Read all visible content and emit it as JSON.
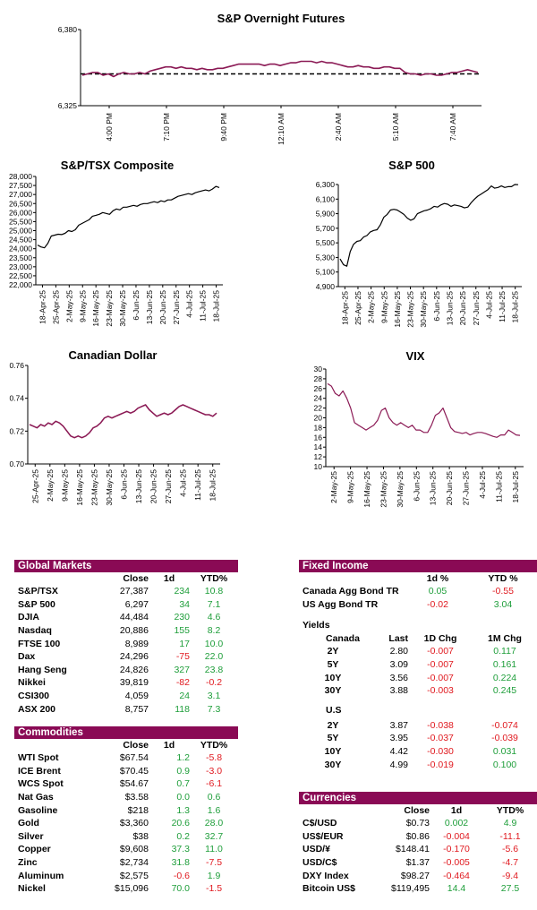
{
  "chart_data": [
    {
      "type": "line",
      "title": "S&P Overnight Futures",
      "ylim": [
        6325,
        6380
      ],
      "y_ticks": [
        "6,380",
        "6,325"
      ],
      "x_ticks": [
        "4:00 PM",
        "7:10 PM",
        "9:40 PM",
        "12:10 AM",
        "2:40 AM",
        "5:10 AM",
        "7:40 AM"
      ],
      "reference_level": 6348,
      "series": [
        {
          "color": "#8b1a55",
          "values": [
            6347,
            6348,
            6349,
            6349,
            6347,
            6348,
            6346,
            6348,
            6349,
            6348,
            6348,
            6349,
            6348,
            6350,
            6351,
            6352,
            6353,
            6353,
            6352,
            6353,
            6352,
            6352,
            6351,
            6352,
            6351,
            6351,
            6352,
            6352,
            6353,
            6354,
            6355,
            6355,
            6355,
            6355,
            6355,
            6354,
            6355,
            6355,
            6354,
            6355,
            6356,
            6356,
            6357,
            6357,
            6357,
            6356,
            6357,
            6356,
            6356,
            6355,
            6354,
            6353,
            6353,
            6354,
            6353,
            6353,
            6352,
            6352,
            6353,
            6353,
            6352,
            6352,
            6349,
            6348,
            6348,
            6347,
            6348,
            6348,
            6347,
            6347,
            6348,
            6349,
            6349,
            6350,
            6351,
            6350,
            6349
          ]
        }
      ]
    },
    {
      "type": "line",
      "title": "S&P/TSX Composite",
      "ylim": [
        22000,
        28000
      ],
      "y_ticks": [
        "28,000",
        "27,500",
        "27,000",
        "26,500",
        "26,000",
        "25,500",
        "25,000",
        "24,500",
        "24,000",
        "23,500",
        "23,000",
        "22,500",
        "22,000"
      ],
      "x_ticks": [
        "18-Apr-25",
        "25-Apr-25",
        "2-May-25",
        "9-May-25",
        "16-May-25",
        "23-May-25",
        "30-May-25",
        "6-Jun-25",
        "13-Jun-25",
        "20-Jun-25",
        "27-Jun-25",
        "4-Jul-25",
        "11-Jul-25",
        "18-Jul-25"
      ],
      "series": [
        {
          "color": "#000000",
          "values": [
            24200,
            24100,
            24050,
            24300,
            24700,
            24750,
            24800,
            24780,
            24850,
            25000,
            24950,
            25050,
            25300,
            25400,
            25500,
            25600,
            25800,
            25850,
            25900,
            26000,
            25950,
            25900,
            26100,
            26200,
            26150,
            26300,
            26300,
            26350,
            26400,
            26350,
            26450,
            26500,
            26500,
            26550,
            26600,
            26550,
            26650,
            26600,
            26700,
            26700,
            26800,
            26900,
            26950,
            27000,
            27050,
            27000,
            27100,
            27150,
            27200,
            27250,
            27200,
            27300,
            27450,
            27387
          ]
        }
      ]
    },
    {
      "type": "line",
      "title": "S&P 500",
      "ylim": [
        4900,
        6300
      ],
      "y_ticks": [
        "6,300",
        "6,100",
        "5,900",
        "5,700",
        "5,500",
        "5,300",
        "5,100",
        "4,900"
      ],
      "x_ticks": [
        "18-Apr-25",
        "25-Apr-25",
        "2-May-25",
        "9-May-25",
        "16-May-25",
        "23-May-25",
        "30-May-25",
        "6-Jun-25",
        "13-Jun-25",
        "20-Jun-25",
        "27-Jun-25",
        "4-Jul-25",
        "11-Jul-25",
        "18-Jul-25"
      ],
      "series": [
        {
          "color": "#000000",
          "values": [
            5280,
            5200,
            5180,
            5380,
            5480,
            5520,
            5530,
            5580,
            5600,
            5650,
            5670,
            5680,
            5750,
            5850,
            5890,
            5950,
            5960,
            5950,
            5920,
            5890,
            5840,
            5810,
            5830,
            5900,
            5920,
            5940,
            5950,
            5970,
            6000,
            5990,
            6020,
            6040,
            6030,
            6000,
            6020,
            6010,
            6000,
            5980,
            5990,
            6050,
            6100,
            6140,
            6170,
            6200,
            6230,
            6280,
            6250,
            6260,
            6280,
            6260,
            6270,
            6270,
            6300,
            6297
          ]
        }
      ]
    },
    {
      "type": "line",
      "title": "Canadian Dollar",
      "ylim": [
        0.7,
        0.76
      ],
      "y_ticks": [
        "0.76",
        "0.74",
        "0.72",
        "0.70"
      ],
      "x_ticks": [
        "25-Apr-25",
        "2-May-25",
        "9-May-25",
        "16-May-25",
        "23-May-25",
        "30-May-25",
        "6-Jun-25",
        "13-Jun-25",
        "20-Jun-25",
        "27-Jun-25",
        "4-Jul-25",
        "11-Jul-25",
        "18-Jul-25"
      ],
      "series": [
        {
          "color": "#8b1a55",
          "values": [
            0.724,
            0.723,
            0.722,
            0.724,
            0.723,
            0.725,
            0.724,
            0.726,
            0.725,
            0.723,
            0.72,
            0.717,
            0.716,
            0.717,
            0.716,
            0.717,
            0.719,
            0.722,
            0.723,
            0.725,
            0.728,
            0.729,
            0.728,
            0.729,
            0.73,
            0.731,
            0.732,
            0.731,
            0.732,
            0.734,
            0.735,
            0.736,
            0.733,
            0.731,
            0.729,
            0.73,
            0.731,
            0.73,
            0.731,
            0.733,
            0.735,
            0.736,
            0.735,
            0.734,
            0.733,
            0.732,
            0.731,
            0.73,
            0.73,
            0.729,
            0.731
          ]
        }
      ]
    },
    {
      "type": "line",
      "title": "VIX",
      "ylim": [
        10,
        30
      ],
      "y_ticks": [
        "30",
        "28",
        "26",
        "24",
        "22",
        "20",
        "18",
        "16",
        "14",
        "12",
        "10"
      ],
      "x_ticks": [
        "2-May-25",
        "9-May-25",
        "16-May-25",
        "23-May-25",
        "30-May-25",
        "6-Jun-25",
        "13-Jun-25",
        "20-Jun-25",
        "27-Jun-25",
        "4-Jul-25",
        "11-Jul-25",
        "18-Jul-25"
      ],
      "series": [
        {
          "color": "#8b1a55",
          "values": [
            27,
            26.5,
            25,
            24.5,
            25.5,
            24,
            22,
            19,
            18.5,
            18,
            17.5,
            18,
            18.5,
            19.5,
            21.5,
            22,
            20,
            19,
            18.5,
            19,
            18.5,
            18,
            18.5,
            17.5,
            17.5,
            17,
            17,
            18.5,
            20.5,
            21,
            22,
            20,
            18,
            17.2,
            17,
            16.8,
            17,
            16.5,
            16.8,
            17,
            17,
            16.8,
            16.5,
            16.2,
            16,
            16.5,
            16.5,
            17.5,
            17,
            16.5,
            16.4
          ]
        }
      ]
    }
  ],
  "colors": {
    "header_bg": "#8a0a55",
    "positive": "#1e9e3a",
    "negative": "#e0191f"
  },
  "global_markets": {
    "title": "Global Markets",
    "columns": [
      "Close",
      "1d",
      "YTD%"
    ],
    "rows": [
      {
        "name": "S&P/TSX",
        "close": "27,387",
        "d1": "234",
        "ytd": "10.8",
        "d1_sign": "pos",
        "ytd_sign": "pos"
      },
      {
        "name": "S&P 500",
        "close": "6,297",
        "d1": "34",
        "ytd": "7.1",
        "d1_sign": "pos",
        "ytd_sign": "pos"
      },
      {
        "name": "DJIA",
        "close": "44,484",
        "d1": "230",
        "ytd": "4.6",
        "d1_sign": "pos",
        "ytd_sign": "pos"
      },
      {
        "name": "Nasdaq",
        "close": "20,886",
        "d1": "155",
        "ytd": "8.2",
        "d1_sign": "pos",
        "ytd_sign": "pos"
      },
      {
        "name": "FTSE 100",
        "close": "8,989",
        "d1": "17",
        "ytd": "10.0",
        "d1_sign": "pos",
        "ytd_sign": "pos"
      },
      {
        "name": "Dax",
        "close": "24,296",
        "d1": "-75",
        "ytd": "22.0",
        "d1_sign": "neg",
        "ytd_sign": "pos"
      },
      {
        "name": "Hang Seng",
        "close": "24,826",
        "d1": "327",
        "ytd": "23.8",
        "d1_sign": "pos",
        "ytd_sign": "pos"
      },
      {
        "name": "Nikkei",
        "close": "39,819",
        "d1": "-82",
        "ytd": "-0.2",
        "d1_sign": "neg",
        "ytd_sign": "neg"
      },
      {
        "name": "CSI300",
        "close": "4,059",
        "d1": "24",
        "ytd": "3.1",
        "d1_sign": "pos",
        "ytd_sign": "pos"
      },
      {
        "name": "ASX 200",
        "close": "8,757",
        "d1": "118",
        "ytd": "7.3",
        "d1_sign": "pos",
        "ytd_sign": "pos"
      }
    ]
  },
  "commodities": {
    "title": "Commodities",
    "columns": [
      "Close",
      "1d",
      "YTD%"
    ],
    "rows": [
      {
        "name": "WTI Spot",
        "close": "$67.54",
        "d1": "1.2",
        "ytd": "-5.8",
        "d1_sign": "pos",
        "ytd_sign": "neg"
      },
      {
        "name": "ICE Brent",
        "close": "$70.45",
        "d1": "0.9",
        "ytd": "-3.0",
        "d1_sign": "pos",
        "ytd_sign": "neg"
      },
      {
        "name": "WCS Spot",
        "close": "$54.67",
        "d1": "0.7",
        "ytd": "-6.1",
        "d1_sign": "pos",
        "ytd_sign": "neg"
      },
      {
        "name": "Nat Gas",
        "close": "$3.58",
        "d1": "0.0",
        "ytd": "0.6",
        "d1_sign": "pos",
        "ytd_sign": "pos"
      },
      {
        "name": "Gasoline",
        "close": "$218",
        "d1": "1.3",
        "ytd": "1.6",
        "d1_sign": "pos",
        "ytd_sign": "pos"
      },
      {
        "name": "Gold",
        "close": "$3,360",
        "d1": "20.6",
        "ytd": "28.0",
        "d1_sign": "pos",
        "ytd_sign": "pos"
      },
      {
        "name": "Silver",
        "close": "$38",
        "d1": "0.2",
        "ytd": "32.7",
        "d1_sign": "pos",
        "ytd_sign": "pos"
      },
      {
        "name": "Copper",
        "close": "$9,608",
        "d1": "37.3",
        "ytd": "11.0",
        "d1_sign": "pos",
        "ytd_sign": "pos"
      },
      {
        "name": "Zinc",
        "close": "$2,734",
        "d1": "31.8",
        "ytd": "-7.5",
        "d1_sign": "pos",
        "ytd_sign": "neg"
      },
      {
        "name": "Aluminum",
        "close": "$2,575",
        "d1": "-0.6",
        "ytd": "1.9",
        "d1_sign": "neg",
        "ytd_sign": "pos"
      },
      {
        "name": "Nickel",
        "close": "$15,096",
        "d1": "70.0",
        "ytd": "-1.5",
        "d1_sign": "pos",
        "ytd_sign": "neg"
      }
    ]
  },
  "fixed_income": {
    "title": "Fixed Income",
    "columns": [
      "1d %",
      "YTD %"
    ],
    "rows": [
      {
        "name": "Canada Agg Bond TR",
        "d1": "0.05",
        "ytd": "-0.55",
        "d1_sign": "pos",
        "ytd_sign": "neg"
      },
      {
        "name": "US Agg Bond TR",
        "d1": "-0.02",
        "ytd": "3.04",
        "d1_sign": "neg",
        "ytd_sign": "pos"
      }
    ],
    "yields_label": "Yields",
    "canada_label": "Canada",
    "yield_columns": [
      "Last",
      "1D Chg",
      "1M Chg"
    ],
    "canada": [
      {
        "name": "2Y",
        "last": "2.80",
        "d1": "-0.007",
        "m1": "0.117",
        "d1_sign": "neg",
        "m1_sign": "pos"
      },
      {
        "name": "5Y",
        "last": "3.09",
        "d1": "-0.007",
        "m1": "0.161",
        "d1_sign": "neg",
        "m1_sign": "pos"
      },
      {
        "name": "10Y",
        "last": "3.56",
        "d1": "-0.007",
        "m1": "0.224",
        "d1_sign": "neg",
        "m1_sign": "pos"
      },
      {
        "name": "30Y",
        "last": "3.88",
        "d1": "-0.003",
        "m1": "0.245",
        "d1_sign": "neg",
        "m1_sign": "pos"
      }
    ],
    "us_label": "U.S",
    "us": [
      {
        "name": "2Y",
        "last": "3.87",
        "d1": "-0.038",
        "m1": "-0.074",
        "d1_sign": "neg",
        "m1_sign": "neg"
      },
      {
        "name": "5Y",
        "last": "3.95",
        "d1": "-0.037",
        "m1": "-0.039",
        "d1_sign": "neg",
        "m1_sign": "neg"
      },
      {
        "name": "10Y",
        "last": "4.42",
        "d1": "-0.030",
        "m1": "0.031",
        "d1_sign": "neg",
        "m1_sign": "pos"
      },
      {
        "name": "30Y",
        "last": "4.99",
        "d1": "-0.019",
        "m1": "0.100",
        "d1_sign": "neg",
        "m1_sign": "pos"
      }
    ]
  },
  "currencies": {
    "title": "Currencies",
    "columns": [
      "Close",
      "1d",
      "YTD%"
    ],
    "rows": [
      {
        "name": "C$/USD",
        "close": "$0.73",
        "d1": "0.002",
        "ytd": "4.9",
        "d1_sign": "pos",
        "ytd_sign": "pos"
      },
      {
        "name": "US$/EUR",
        "close": "$0.86",
        "d1": "-0.004",
        "ytd": "-11.1",
        "d1_sign": "neg",
        "ytd_sign": "neg"
      },
      {
        "name": "USD/¥",
        "close": "$148.41",
        "d1": "-0.170",
        "ytd": "-5.6",
        "d1_sign": "neg",
        "ytd_sign": "neg"
      },
      {
        "name": "USD/C$",
        "close": "$1.37",
        "d1": "-0.005",
        "ytd": "-4.7",
        "d1_sign": "neg",
        "ytd_sign": "neg"
      },
      {
        "name": "DXY Index",
        "close": "$98.27",
        "d1": "-0.464",
        "ytd": "-9.4",
        "d1_sign": "neg",
        "ytd_sign": "neg"
      },
      {
        "name": "Bitcoin US$",
        "close": "$119,495",
        "d1": "14.4",
        "ytd": "27.5",
        "d1_sign": "pos",
        "ytd_sign": "pos"
      }
    ]
  }
}
